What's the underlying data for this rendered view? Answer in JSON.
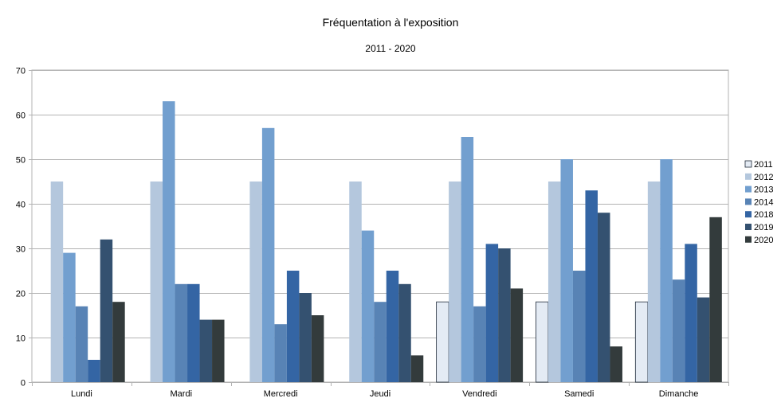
{
  "chart_data": {
    "type": "bar",
    "title": "Fréquentation à l'exposition",
    "subtitle": "2011 - 2020",
    "xlabel": "",
    "ylabel": "",
    "categories": [
      "Lundi",
      "Mardi",
      "Mercredi",
      "Jeudi",
      "Vendredi",
      "Samedi",
      "Dimanche"
    ],
    "ylim": [
      0,
      70
    ],
    "yticks": [
      0,
      10,
      20,
      30,
      40,
      50,
      60,
      70
    ],
    "grid": true,
    "legend_position": "right",
    "series": [
      {
        "name": "2011",
        "color": "#e4ebf4",
        "values": [
          0,
          0,
          0,
          0,
          18,
          18,
          18
        ]
      },
      {
        "name": "2012",
        "color": "#b4c7dd",
        "values": [
          45,
          45,
          45,
          45,
          45,
          45,
          45
        ]
      },
      {
        "name": "2013",
        "color": "#729fcf",
        "values": [
          29,
          63,
          57,
          34,
          55,
          50,
          50
        ]
      },
      {
        "name": "2014",
        "color": "#5883b5",
        "values": [
          17,
          22,
          13,
          18,
          17,
          25,
          23
        ]
      },
      {
        "name": "2018",
        "color": "#3465a4",
        "values": [
          5,
          22,
          25,
          25,
          31,
          43,
          31
        ]
      },
      {
        "name": "2019",
        "color": "#345170",
        "values": [
          32,
          14,
          20,
          22,
          30,
          38,
          19
        ]
      },
      {
        "name": "2020",
        "color": "#333b3c",
        "values": [
          18,
          14,
          15,
          6,
          21,
          8,
          37
        ]
      }
    ]
  }
}
